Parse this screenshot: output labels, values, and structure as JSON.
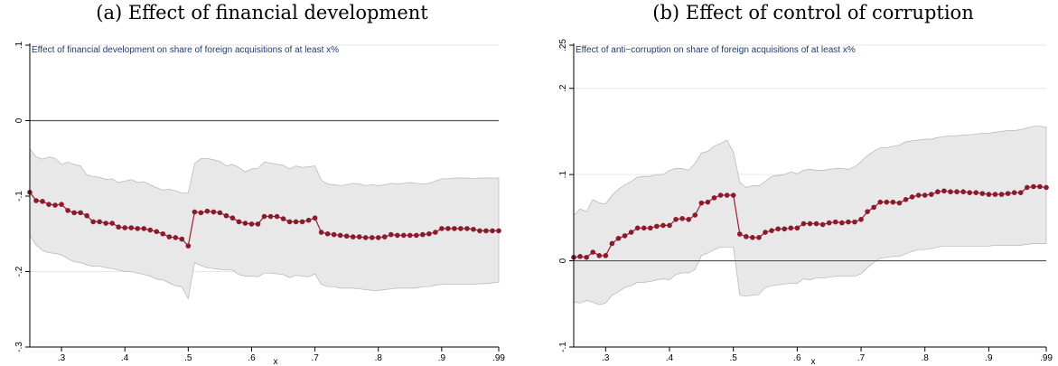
{
  "panels": {
    "a_title": "(a) Effect of financial development",
    "b_title": "(b) Effect of control of corruption"
  },
  "colors": {
    "point": "#8b1a2b",
    "line": "#a01e30",
    "band_fill": "#e8e8e8",
    "band_stroke": "#b4b4b4",
    "zero_line": "#555555",
    "grid": "#e6e6e6",
    "note_text": "#1f3a6b"
  },
  "chart_data": [
    {
      "type": "line",
      "note": "Effect of financial development on share of foreign acquisitions of at least x%",
      "xlabel": "x",
      "ylabel": "",
      "xlim": [
        0.25,
        0.99
      ],
      "ylim": [
        -0.3,
        0.1
      ],
      "xticks": [
        0.3,
        0.4,
        0.5,
        0.6,
        0.7,
        0.8,
        0.9,
        0.99
      ],
      "xtick_labels": [
        ".3",
        ".4",
        ".5",
        ".6",
        ".7",
        ".8",
        ".9",
        ".99"
      ],
      "yticks": [
        -0.3,
        -0.2,
        -0.1,
        0,
        0.1
      ],
      "ytick_labels": [
        "-.3",
        "-.2",
        "-.1",
        "0",
        ".1"
      ],
      "grid": true,
      "reference_line": 0,
      "x": [
        0.25,
        0.26,
        0.27,
        0.28,
        0.29,
        0.3,
        0.31,
        0.32,
        0.33,
        0.34,
        0.35,
        0.36,
        0.37,
        0.38,
        0.39,
        0.4,
        0.41,
        0.42,
        0.43,
        0.44,
        0.45,
        0.46,
        0.47,
        0.48,
        0.49,
        0.5,
        0.51,
        0.52,
        0.53,
        0.54,
        0.55,
        0.56,
        0.57,
        0.58,
        0.59,
        0.6,
        0.61,
        0.62,
        0.63,
        0.64,
        0.65,
        0.66,
        0.67,
        0.68,
        0.69,
        0.7,
        0.71,
        0.72,
        0.73,
        0.74,
        0.75,
        0.76,
        0.77,
        0.78,
        0.79,
        0.8,
        0.81,
        0.82,
        0.83,
        0.84,
        0.85,
        0.86,
        0.87,
        0.88,
        0.89,
        0.9,
        0.91,
        0.92,
        0.93,
        0.94,
        0.95,
        0.96,
        0.97,
        0.98,
        0.99
      ],
      "series": [
        {
          "values": [
            -0.095,
            -0.106,
            -0.107,
            -0.111,
            -0.112,
            -0.111,
            -0.119,
            -0.122,
            -0.122,
            -0.126,
            -0.134,
            -0.134,
            -0.136,
            -0.136,
            -0.141,
            -0.142,
            -0.142,
            -0.143,
            -0.143,
            -0.145,
            -0.147,
            -0.15,
            -0.154,
            -0.155,
            -0.157,
            -0.166,
            -0.121,
            -0.122,
            -0.12,
            -0.121,
            -0.122,
            -0.126,
            -0.129,
            -0.134,
            -0.136,
            -0.137,
            -0.137,
            -0.127,
            -0.127,
            -0.127,
            -0.13,
            -0.134,
            -0.134,
            -0.134,
            -0.132,
            -0.129,
            -0.148,
            -0.15,
            -0.151,
            -0.152,
            -0.153,
            -0.154,
            -0.154,
            -0.155,
            -0.155,
            -0.155,
            -0.154,
            -0.151,
            -0.152,
            -0.152,
            -0.152,
            -0.152,
            -0.151,
            -0.15,
            -0.148,
            -0.143,
            -0.143,
            -0.143,
            -0.143,
            -0.143,
            -0.144,
            -0.146,
            -0.146,
            -0.146,
            -0.146
          ],
          "ci_upper": [
            -0.037,
            -0.048,
            -0.051,
            -0.048,
            -0.05,
            -0.058,
            -0.055,
            -0.058,
            -0.06,
            -0.072,
            -0.074,
            -0.075,
            -0.078,
            -0.077,
            -0.082,
            -0.08,
            -0.078,
            -0.082,
            -0.081,
            -0.085,
            -0.089,
            -0.092,
            -0.091,
            -0.093,
            -0.096,
            -0.096,
            -0.057,
            -0.05,
            -0.05,
            -0.052,
            -0.054,
            -0.06,
            -0.058,
            -0.062,
            -0.068,
            -0.064,
            -0.063,
            -0.055,
            -0.056,
            -0.058,
            -0.059,
            -0.064,
            -0.06,
            -0.062,
            -0.061,
            -0.06,
            -0.079,
            -0.084,
            -0.085,
            -0.086,
            -0.085,
            -0.083,
            -0.084,
            -0.086,
            -0.085,
            -0.086,
            -0.085,
            -0.083,
            -0.084,
            -0.083,
            -0.082,
            -0.083,
            -0.084,
            -0.083,
            -0.08,
            -0.077,
            -0.077,
            -0.076,
            -0.076,
            -0.076,
            -0.077,
            -0.076,
            -0.076,
            -0.076,
            -0.076
          ],
          "ci_lower": [
            -0.152,
            -0.165,
            -0.172,
            -0.175,
            -0.176,
            -0.178,
            -0.183,
            -0.187,
            -0.188,
            -0.191,
            -0.193,
            -0.193,
            -0.195,
            -0.196,
            -0.198,
            -0.2,
            -0.2,
            -0.202,
            -0.204,
            -0.206,
            -0.21,
            -0.211,
            -0.215,
            -0.219,
            -0.22,
            -0.236,
            -0.188,
            -0.192,
            -0.195,
            -0.196,
            -0.197,
            -0.198,
            -0.198,
            -0.204,
            -0.206,
            -0.206,
            -0.207,
            -0.202,
            -0.202,
            -0.203,
            -0.204,
            -0.208,
            -0.205,
            -0.206,
            -0.207,
            -0.203,
            -0.217,
            -0.22,
            -0.22,
            -0.222,
            -0.222,
            -0.222,
            -0.223,
            -0.224,
            -0.225,
            -0.225,
            -0.224,
            -0.223,
            -0.222,
            -0.222,
            -0.222,
            -0.222,
            -0.22,
            -0.22,
            -0.218,
            -0.217,
            -0.217,
            -0.217,
            -0.217,
            -0.217,
            -0.217,
            -0.216,
            -0.216,
            -0.215,
            -0.214
          ]
        }
      ]
    },
    {
      "type": "line",
      "note": "Effect of anti−corruption on share of foreign acquisitions of at least x%",
      "xlabel": "x",
      "ylabel": "",
      "xlim": [
        0.25,
        0.99
      ],
      "ylim": [
        -0.1,
        0.25
      ],
      "xticks": [
        0.3,
        0.4,
        0.5,
        0.6,
        0.7,
        0.8,
        0.9,
        0.99
      ],
      "xtick_labels": [
        ".3",
        ".4",
        ".5",
        ".6",
        ".7",
        ".8",
        ".9",
        ".99"
      ],
      "yticks": [
        -0.1,
        0,
        0.1,
        0.2,
        0.25
      ],
      "ytick_labels": [
        "-.1",
        "0",
        ".1",
        ".2",
        ".25"
      ],
      "grid": true,
      "reference_line": 0,
      "x": [
        0.25,
        0.26,
        0.27,
        0.28,
        0.29,
        0.3,
        0.31,
        0.32,
        0.33,
        0.34,
        0.35,
        0.36,
        0.37,
        0.38,
        0.39,
        0.4,
        0.41,
        0.42,
        0.43,
        0.44,
        0.45,
        0.46,
        0.47,
        0.48,
        0.49,
        0.5,
        0.51,
        0.52,
        0.53,
        0.54,
        0.55,
        0.56,
        0.57,
        0.58,
        0.59,
        0.6,
        0.61,
        0.62,
        0.63,
        0.64,
        0.65,
        0.66,
        0.67,
        0.68,
        0.69,
        0.7,
        0.71,
        0.72,
        0.73,
        0.74,
        0.75,
        0.76,
        0.77,
        0.78,
        0.79,
        0.8,
        0.81,
        0.82,
        0.83,
        0.84,
        0.85,
        0.86,
        0.87,
        0.88,
        0.89,
        0.9,
        0.91,
        0.92,
        0.93,
        0.94,
        0.95,
        0.96,
        0.97,
        0.98,
        0.99
      ],
      "series": [
        {
          "values": [
            0.004,
            0.005,
            0.004,
            0.01,
            0.006,
            0.006,
            0.02,
            0.026,
            0.029,
            0.033,
            0.038,
            0.038,
            0.038,
            0.04,
            0.041,
            0.041,
            0.048,
            0.049,
            0.048,
            0.053,
            0.067,
            0.068,
            0.073,
            0.076,
            0.076,
            0.076,
            0.031,
            0.028,
            0.027,
            0.027,
            0.033,
            0.035,
            0.037,
            0.037,
            0.038,
            0.038,
            0.043,
            0.043,
            0.043,
            0.042,
            0.044,
            0.045,
            0.044,
            0.045,
            0.045,
            0.048,
            0.057,
            0.062,
            0.068,
            0.068,
            0.068,
            0.067,
            0.071,
            0.074,
            0.076,
            0.076,
            0.077,
            0.08,
            0.081,
            0.08,
            0.08,
            0.08,
            0.079,
            0.079,
            0.078,
            0.077,
            0.077,
            0.077,
            0.078,
            0.079,
            0.079,
            0.085,
            0.086,
            0.086,
            0.085
          ],
          "ci_upper": [
            0.053,
            0.06,
            0.057,
            0.071,
            0.067,
            0.066,
            0.076,
            0.083,
            0.088,
            0.092,
            0.097,
            0.098,
            0.098,
            0.1,
            0.1,
            0.105,
            0.107,
            0.107,
            0.105,
            0.113,
            0.125,
            0.127,
            0.133,
            0.136,
            0.14,
            0.126,
            0.091,
            0.085,
            0.087,
            0.087,
            0.092,
            0.098,
            0.099,
            0.1,
            0.103,
            0.101,
            0.105,
            0.106,
            0.105,
            0.105,
            0.106,
            0.107,
            0.107,
            0.106,
            0.109,
            0.115,
            0.122,
            0.127,
            0.131,
            0.131,
            0.133,
            0.134,
            0.138,
            0.139,
            0.14,
            0.141,
            0.141,
            0.143,
            0.144,
            0.145,
            0.145,
            0.146,
            0.146,
            0.147,
            0.148,
            0.148,
            0.149,
            0.15,
            0.151,
            0.151,
            0.152,
            0.154,
            0.156,
            0.156,
            0.155
          ],
          "ci_lower": [
            -0.048,
            -0.049,
            -0.046,
            -0.048,
            -0.051,
            -0.049,
            -0.04,
            -0.036,
            -0.031,
            -0.029,
            -0.025,
            -0.025,
            -0.024,
            -0.022,
            -0.021,
            -0.022,
            -0.016,
            -0.014,
            -0.014,
            -0.01,
            0.006,
            0.009,
            0.013,
            0.016,
            0.016,
            0.016,
            -0.04,
            -0.041,
            -0.04,
            -0.039,
            -0.031,
            -0.029,
            -0.028,
            -0.027,
            -0.026,
            -0.026,
            -0.021,
            -0.022,
            -0.02,
            -0.02,
            -0.019,
            -0.018,
            -0.018,
            -0.018,
            -0.018,
            -0.015,
            -0.008,
            -0.002,
            0.003,
            0.004,
            0.005,
            0.005,
            0.008,
            0.011,
            0.013,
            0.013,
            0.014,
            0.016,
            0.017,
            0.017,
            0.017,
            0.017,
            0.017,
            0.017,
            0.017,
            0.017,
            0.018,
            0.018,
            0.018,
            0.018,
            0.018,
            0.019,
            0.02,
            0.02,
            0.02
          ]
        }
      ]
    }
  ]
}
